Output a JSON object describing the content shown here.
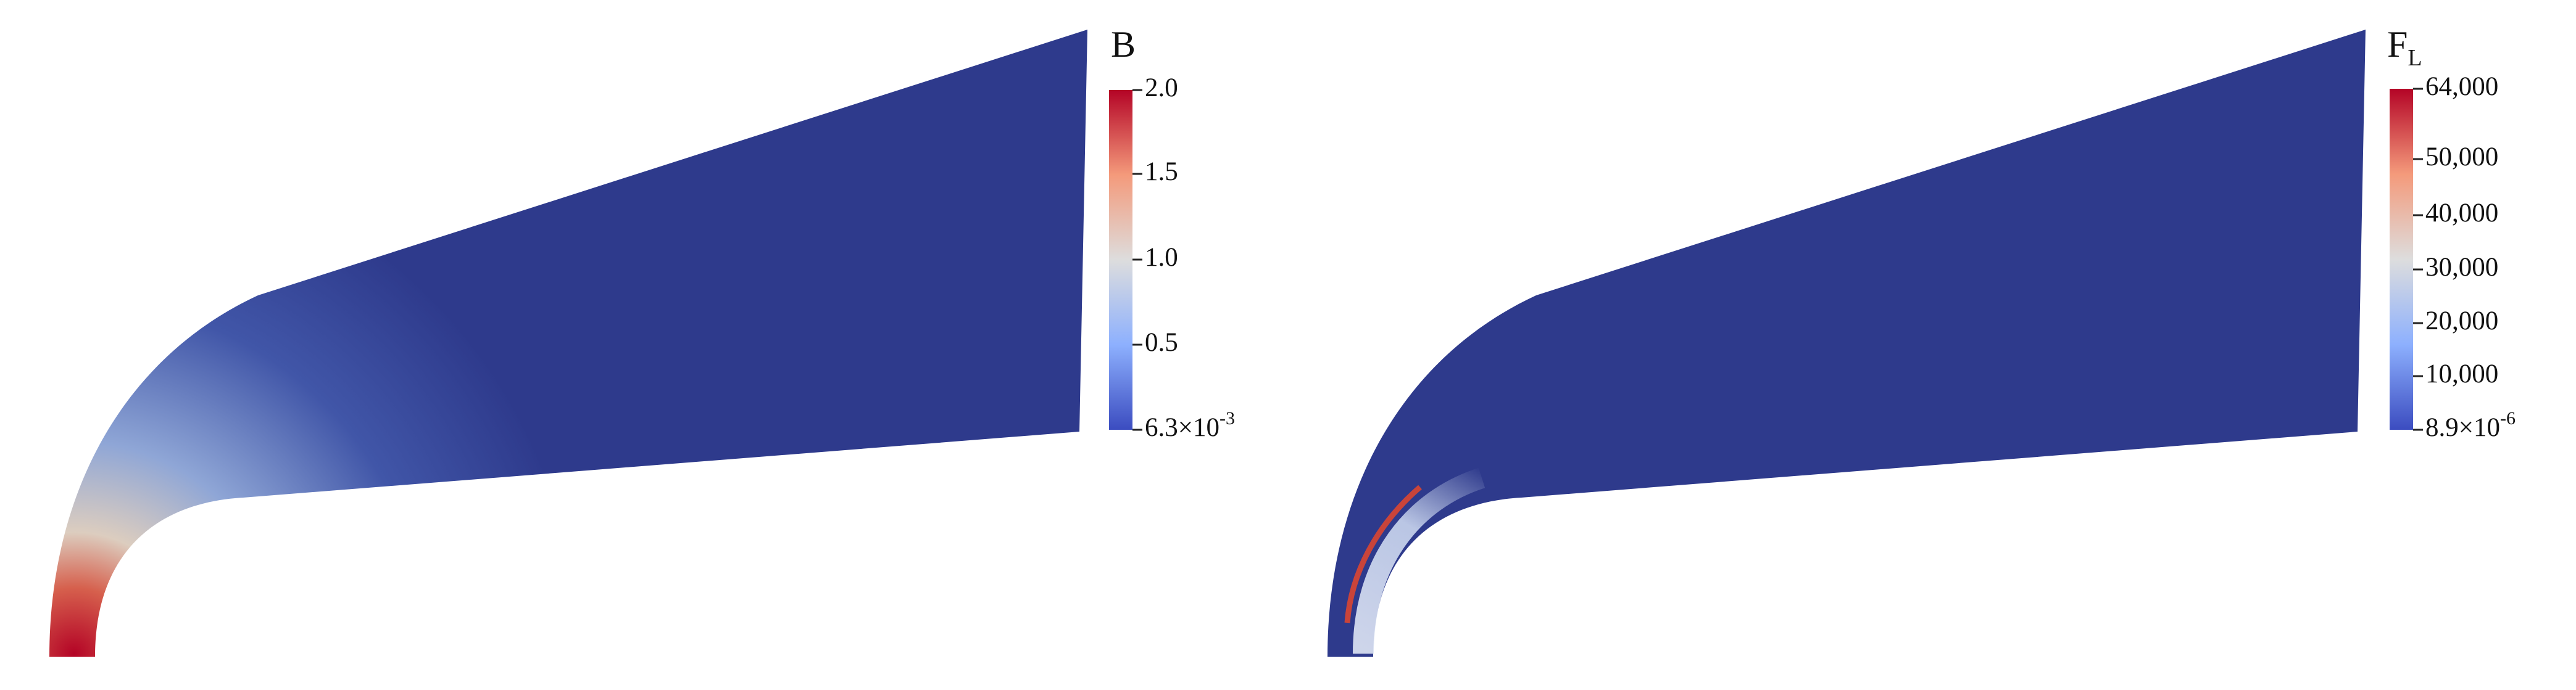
{
  "panels": [
    {
      "colorbar": {
        "title": "B",
        "ticks": [
          "2.0",
          "1.5",
          "1.0",
          "0.5"
        ],
        "min_label": {
          "base": "6.3×10",
          "exponent": "-3"
        }
      }
    },
    {
      "colorbar": {
        "title": {
          "base": "F",
          "subscript": "L"
        },
        "ticks": [
          "64,000",
          "50,000",
          "40,000",
          "30,000",
          "20,000",
          "10,000"
        ],
        "min_label": {
          "base": "8.9×10",
          "exponent": "-6"
        }
      }
    }
  ]
}
